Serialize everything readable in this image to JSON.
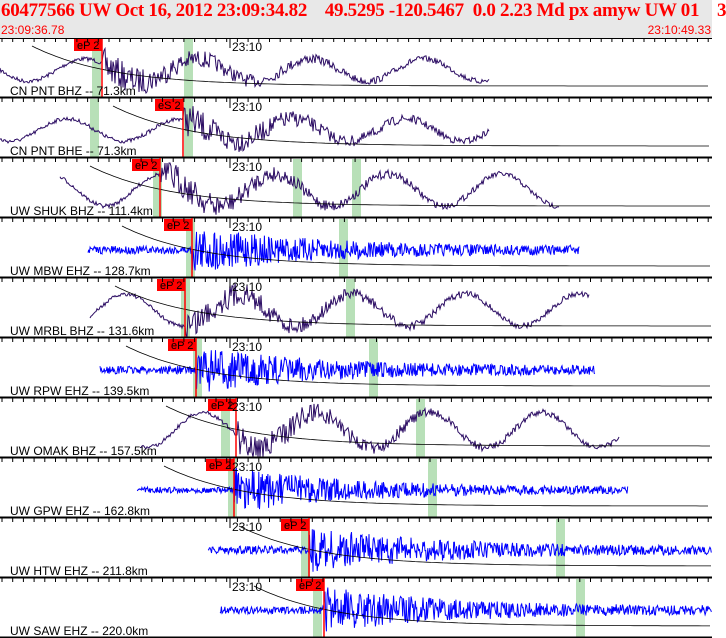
{
  "header": {
    "title": "60477566 UW Oct 16, 2012 23:09:34.82    49.5295 -120.5467  0.0 2.23 Md px amyw UW 01    3",
    "start_time": "23:09:36.78",
    "end_time": "23:10:49.33"
  },
  "time_mark": "23:10",
  "colors": {
    "broadband": "#2b0c63",
    "short_period": "#0000ff",
    "pick": "#ff0000",
    "window": "#b8e0b8"
  },
  "channels": [
    {
      "label": "CN PNT BHZ -- 71.3km",
      "pick": "eP 2",
      "type": "broadband"
    },
    {
      "label": "CN PNT BHE -- 71.3km",
      "pick": "eS 2",
      "type": "broadband"
    },
    {
      "label": "UW SHUK BHZ -- 111.4km",
      "pick": "eP 2",
      "type": "broadband"
    },
    {
      "label": "UW MBW EHZ -- 128.7km",
      "pick": "eP 2",
      "type": "short_period"
    },
    {
      "label": "UW MRBL BHZ -- 131.6km",
      "pick": "eP 2",
      "type": "broadband"
    },
    {
      "label": "UW RPW EHZ -- 139.5km",
      "pick": "eP 2",
      "type": "short_period"
    },
    {
      "label": "UW OMAK BHZ -- 157.5km",
      "pick": "eP 2",
      "type": "broadband"
    },
    {
      "label": "UW GPW EHZ -- 162.8km",
      "pick": "eP 2",
      "type": "short_period"
    },
    {
      "label": "UW HTW EHZ -- 211.8km",
      "pick": "eP 2",
      "type": "short_period"
    },
    {
      "label": "UW SAW EHZ -- 220.0km",
      "pick": "eP 2",
      "type": "short_period"
    }
  ]
}
